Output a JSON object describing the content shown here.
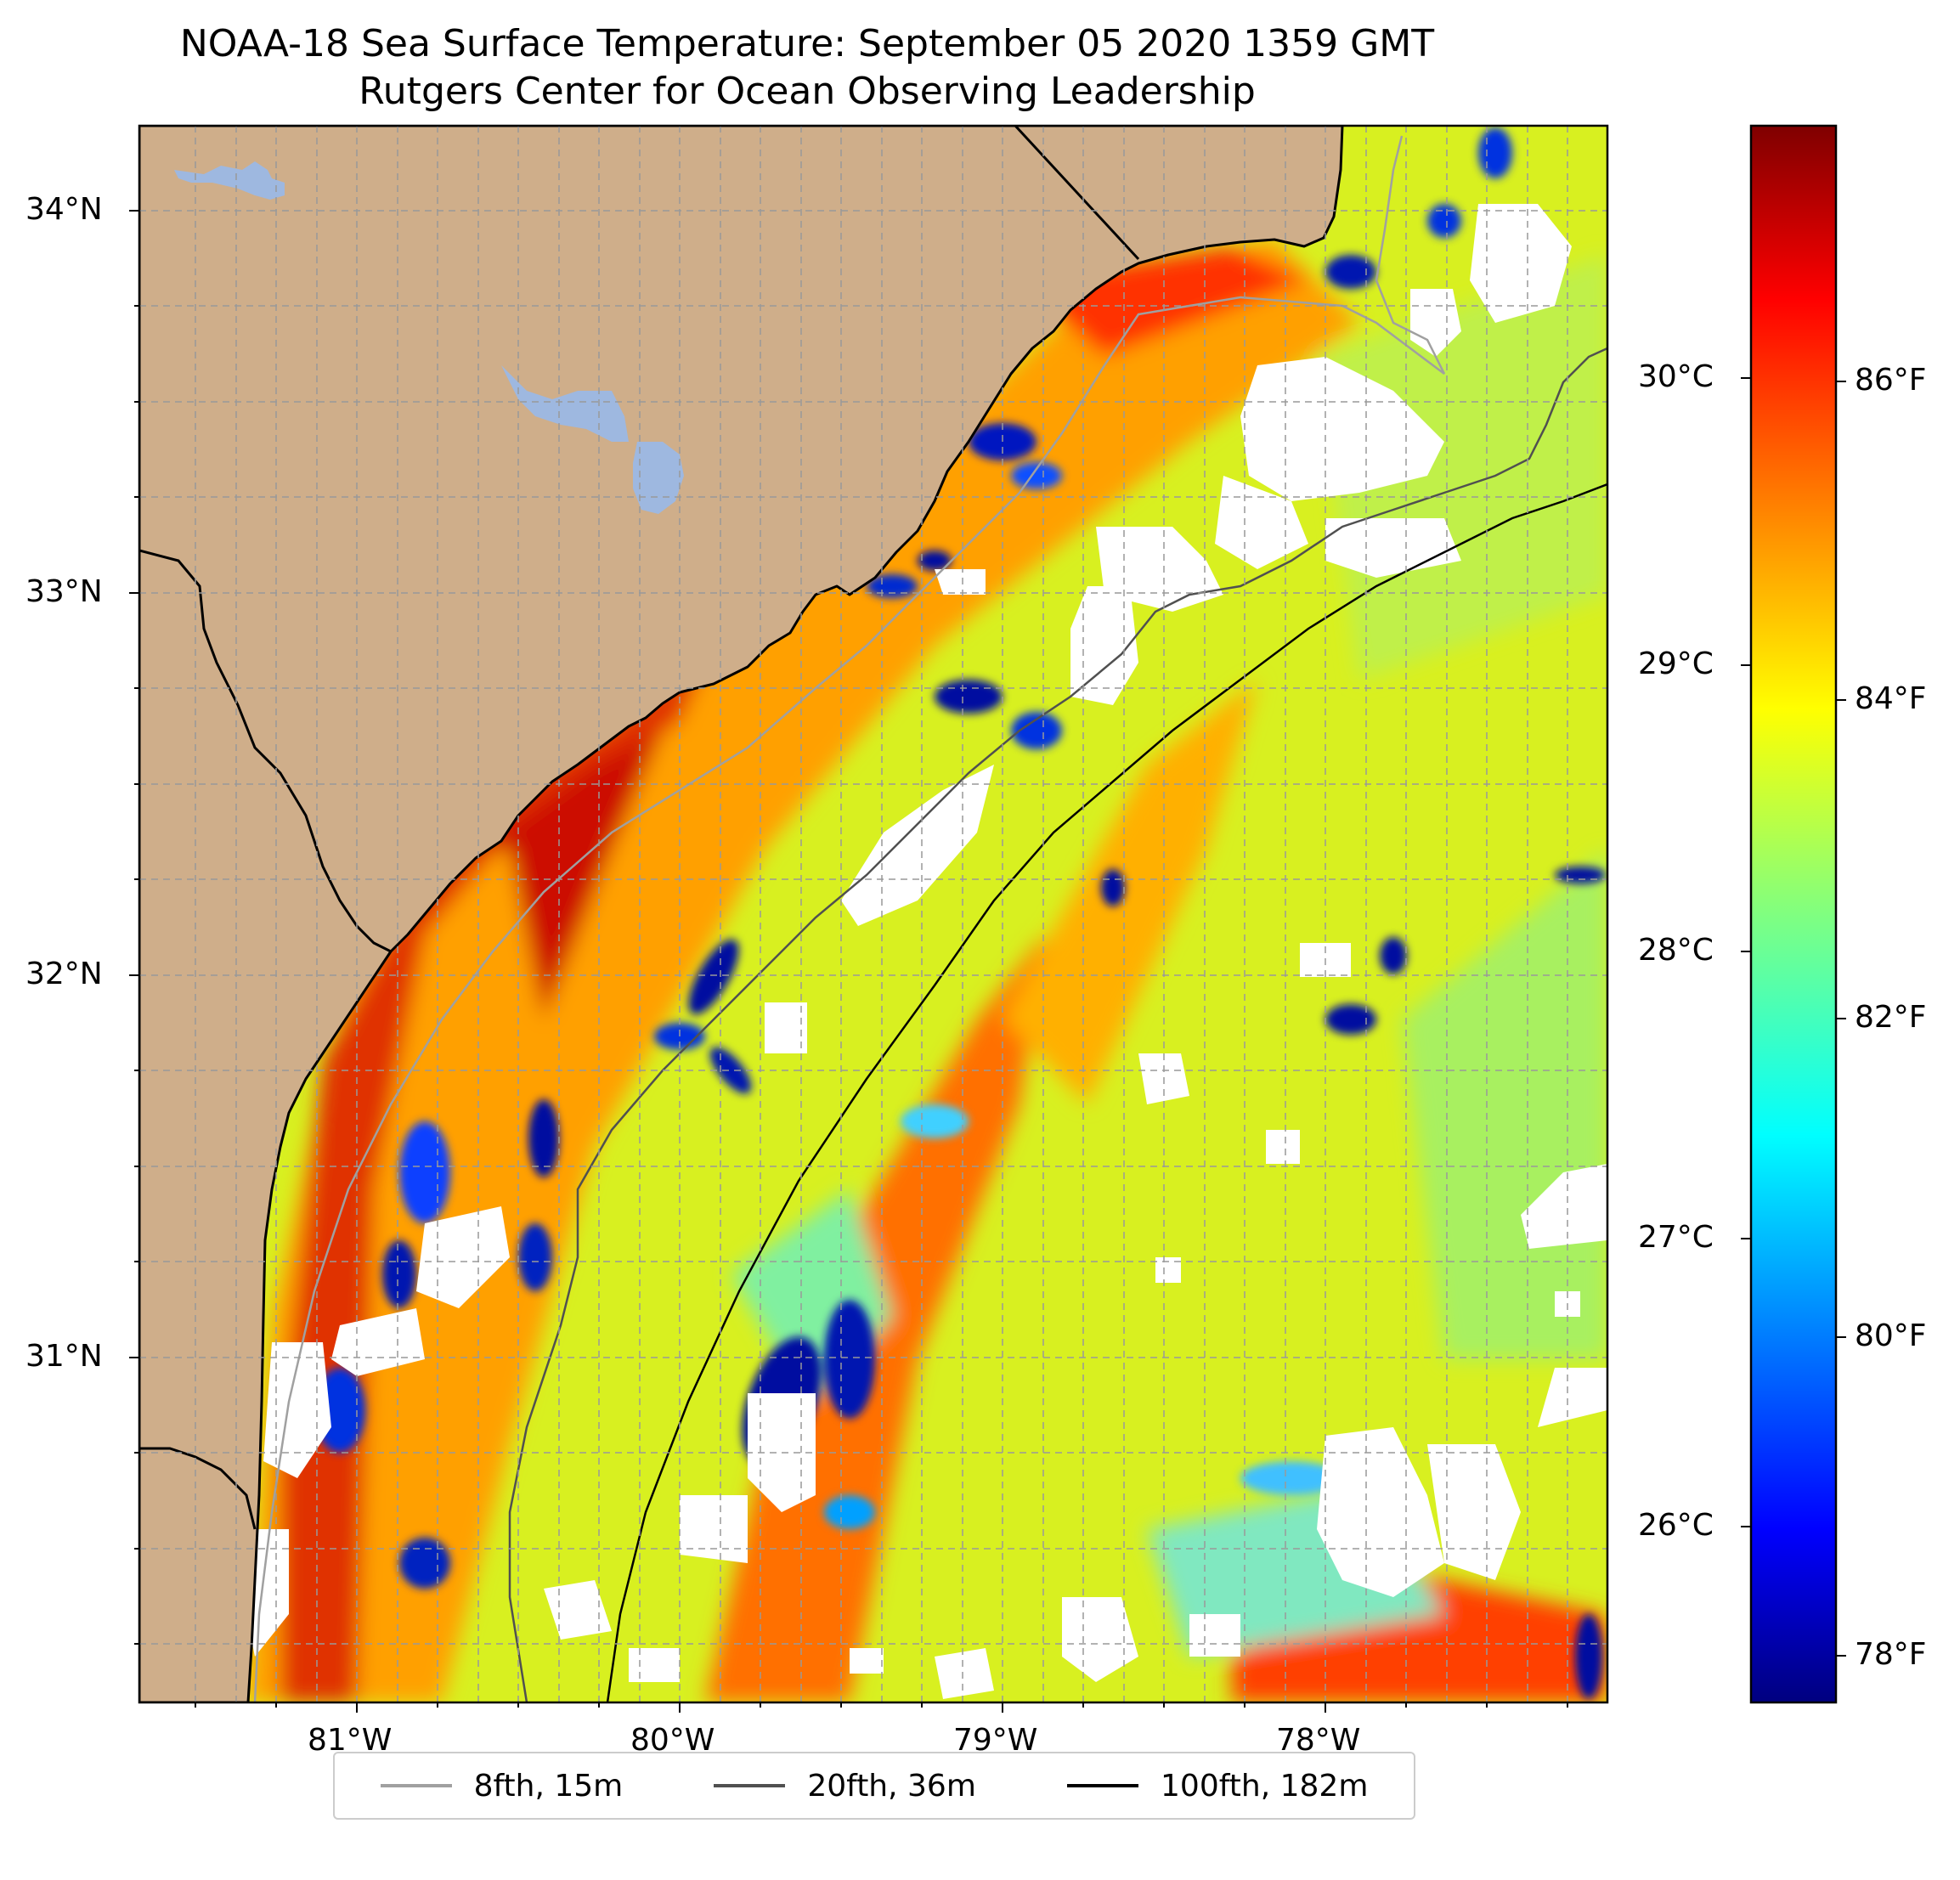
{
  "title": {
    "line1": "NOAA-18 Sea Surface Temperature: September 05 2020 1359 GMT",
    "line2": "Rutgers Center for Ocean Observing Leadership"
  },
  "map": {
    "lon_range": [
      -81.67,
      -77.12
    ],
    "lat_range": [
      30.08,
      34.22
    ],
    "lon_ticks": [
      {
        "value": -81,
        "label": "81°W"
      },
      {
        "value": -80,
        "label": "80°W"
      },
      {
        "value": -79,
        "label": "79°W"
      },
      {
        "value": -78,
        "label": "78°W"
      }
    ],
    "lat_ticks": [
      {
        "value": 34,
        "label": "34°N"
      },
      {
        "value": 33,
        "label": "33°N"
      },
      {
        "value": 32,
        "label": "32°N"
      },
      {
        "value": 31,
        "label": "31°N"
      }
    ],
    "gridlines": true,
    "colors": {
      "land": "#cfae8a",
      "lake": "#9eb8e0",
      "coast": "#000000",
      "no_data": "#ffffff"
    }
  },
  "colorbar": {
    "colormap": "jet",
    "celsius_ticks": [
      {
        "value": 30,
        "label": "30°C"
      },
      {
        "value": 29,
        "label": "29°C"
      },
      {
        "value": 28,
        "label": "28°C"
      },
      {
        "value": 27,
        "label": "27°C"
      },
      {
        "value": 26,
        "label": "26°C"
      }
    ],
    "fahrenheit_ticks": [
      {
        "value": 86,
        "label": "86°F"
      },
      {
        "value": 84,
        "label": "84°F"
      },
      {
        "value": 82,
        "label": "82°F"
      },
      {
        "value": 80,
        "label": "80°F"
      },
      {
        "value": 78,
        "label": "78°F"
      }
    ]
  },
  "legend": {
    "position": "bottom-center",
    "items": [
      {
        "label": "8fth, 15m",
        "color": "#a0a0a0"
      },
      {
        "label": "20fth, 36m",
        "color": "#505050"
      },
      {
        "label": "100fth, 182m",
        "color": "#000000"
      }
    ]
  }
}
